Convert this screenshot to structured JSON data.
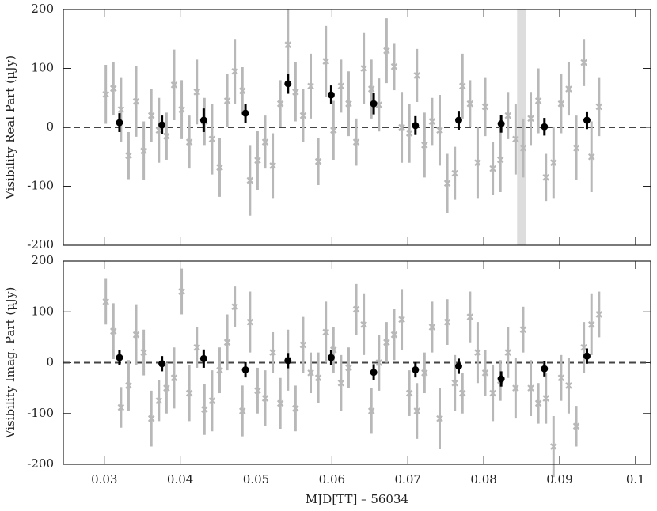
{
  "chart_data": [
    {
      "type": "scatter",
      "ylabel": "Visibility Real Part (μJy)",
      "xlim": [
        0.0246,
        0.102
      ],
      "ylim": [
        -200,
        200
      ],
      "xticks": [
        0.03,
        0.04,
        0.05,
        0.06,
        0.07,
        0.08,
        0.09,
        0.1
      ],
      "yticks": [
        -200,
        -100,
        0,
        100,
        200
      ],
      "zero_line": 0,
      "band": [
        0.0844,
        0.0856
      ],
      "band_color": "#dddddd",
      "series": [
        {
          "color": "#b8b8b8",
          "marker": "cross",
          "x": [
            0.0302,
            0.0312,
            0.0322,
            0.0332,
            0.0342,
            0.0352,
            0.0362,
            0.0372,
            0.0382,
            0.0392,
            0.0402,
            0.0412,
            0.0422,
            0.0432,
            0.0442,
            0.0452,
            0.0462,
            0.0472,
            0.0482,
            0.0492,
            0.0502,
            0.0512,
            0.0522,
            0.0532,
            0.0542,
            0.0552,
            0.0562,
            0.0572,
            0.0582,
            0.0592,
            0.0602,
            0.0612,
            0.0622,
            0.0632,
            0.0642,
            0.0652,
            0.0662,
            0.0672,
            0.0682,
            0.0692,
            0.0702,
            0.0712,
            0.0722,
            0.0732,
            0.0742,
            0.0752,
            0.0762,
            0.0772,
            0.0782,
            0.0792,
            0.0802,
            0.0812,
            0.0822,
            0.0832,
            0.0842,
            0.0852,
            0.0862,
            0.0872,
            0.0882,
            0.0892,
            0.0902,
            0.0912,
            0.0922,
            0.0932,
            0.0942,
            0.0952
          ],
          "values": [
            56,
            66,
            30,
            -48,
            44,
            -40,
            20,
            -5,
            -15,
            72,
            30,
            -25,
            60,
            10,
            -20,
            -68,
            45,
            95,
            62,
            -90,
            -56,
            -25,
            -65,
            40,
            140,
            60,
            20,
            70,
            -58,
            112,
            -5,
            70,
            40,
            -25,
            100,
            65,
            38,
            130,
            103,
            0,
            -10,
            88,
            -30,
            10,
            -5,
            -95,
            -78,
            70,
            40,
            -60,
            35,
            -70,
            -55,
            20,
            -20,
            -35,
            15,
            45,
            -85,
            -60,
            40,
            65,
            -35,
            110,
            -50,
            35
          ],
          "errors": [
            50,
            45,
            55,
            40,
            60,
            50,
            45,
            55,
            40,
            60,
            50,
            45,
            55,
            40,
            60,
            50,
            45,
            55,
            40,
            60,
            50,
            45,
            55,
            40,
            60,
            50,
            45,
            55,
            40,
            60,
            50,
            45,
            55,
            40,
            60,
            50,
            45,
            55,
            40,
            60,
            50,
            45,
            55,
            40,
            60,
            50,
            45,
            55,
            40,
            60,
            50,
            45,
            55,
            40,
            60,
            50,
            45,
            55,
            40,
            60,
            50,
            45,
            55,
            40,
            60,
            50
          ]
        },
        {
          "color": "#000000",
          "marker": "circle",
          "x": [
            0.032,
            0.0376,
            0.0431,
            0.0486,
            0.0542,
            0.0599,
            0.0655,
            0.071,
            0.0767,
            0.0823,
            0.088,
            0.0936
          ],
          "values": [
            8,
            4,
            12,
            24,
            74,
            55,
            40,
            3,
            12,
            6,
            1,
            12
          ],
          "errors": [
            16,
            16,
            20,
            16,
            17,
            16,
            18,
            16,
            16,
            15,
            15,
            15
          ]
        }
      ]
    },
    {
      "type": "scatter",
      "ylabel": "Visibility Imag. Part (μJy)",
      "xlabel": "MJD[TT] – 56034",
      "xlim": [
        0.0246,
        0.102
      ],
      "ylim": [
        -200,
        200
      ],
      "xticks": [
        0.03,
        0.04,
        0.05,
        0.06,
        0.07,
        0.08,
        0.09,
        0.1
      ],
      "yticks": [
        -200,
        -100,
        0,
        100,
        200
      ],
      "zero_line": 0,
      "series": [
        {
          "color": "#b8b8b8",
          "marker": "cross",
          "x": [
            0.0302,
            0.0312,
            0.0322,
            0.0332,
            0.0342,
            0.0352,
            0.0362,
            0.0372,
            0.0382,
            0.0392,
            0.0402,
            0.0412,
            0.0422,
            0.0432,
            0.0442,
            0.0452,
            0.0462,
            0.0472,
            0.0482,
            0.0492,
            0.0502,
            0.0512,
            0.0522,
            0.0532,
            0.0542,
            0.0552,
            0.0562,
            0.0572,
            0.0582,
            0.0592,
            0.0602,
            0.0612,
            0.0622,
            0.0632,
            0.0642,
            0.0652,
            0.0662,
            0.0672,
            0.0682,
            0.0692,
            0.0702,
            0.0712,
            0.0722,
            0.0732,
            0.0742,
            0.0752,
            0.0762,
            0.0772,
            0.0782,
            0.0792,
            0.0802,
            0.0812,
            0.0822,
            0.0832,
            0.0842,
            0.0852,
            0.0862,
            0.0872,
            0.0882,
            0.0892,
            0.0902,
            0.0912,
            0.0922,
            0.0932,
            0.0942,
            0.0952
          ],
          "values": [
            120,
            62,
            -88,
            -45,
            55,
            20,
            -110,
            -75,
            -50,
            -30,
            140,
            -60,
            30,
            -92,
            -75,
            -15,
            40,
            110,
            -95,
            80,
            -55,
            -70,
            20,
            -80,
            5,
            -90,
            35,
            -20,
            -30,
            60,
            25,
            -40,
            -10,
            105,
            75,
            -95,
            0,
            40,
            55,
            85,
            -60,
            -95,
            -20,
            70,
            -110,
            80,
            -40,
            -60,
            90,
            20,
            -20,
            -60,
            -35,
            20,
            -50,
            65,
            -50,
            -80,
            -70,
            -165,
            -30,
            -45,
            -125,
            30,
            75,
            95
          ],
          "errors": [
            45,
            55,
            40,
            50,
            60,
            45,
            55,
            40,
            50,
            60,
            45,
            55,
            40,
            50,
            60,
            45,
            55,
            40,
            50,
            60,
            45,
            55,
            40,
            50,
            60,
            45,
            55,
            40,
            50,
            60,
            45,
            55,
            40,
            50,
            60,
            45,
            55,
            40,
            50,
            60,
            45,
            55,
            40,
            50,
            60,
            45,
            55,
            40,
            50,
            60,
            45,
            55,
            40,
            50,
            60,
            45,
            55,
            40,
            50,
            60,
            45,
            55,
            40,
            50,
            60,
            45
          ]
        },
        {
          "color": "#000000",
          "marker": "circle",
          "x": [
            0.032,
            0.0376,
            0.0431,
            0.0486,
            0.0542,
            0.0599,
            0.0655,
            0.071,
            0.0767,
            0.0823,
            0.088,
            0.0936
          ],
          "values": [
            10,
            -2,
            8,
            -14,
            4,
            10,
            -19,
            -14,
            -7,
            -32,
            -12,
            13
          ],
          "errors": [
            15,
            15,
            18,
            15,
            15,
            15,
            16,
            15,
            15,
            15,
            15,
            15
          ]
        }
      ]
    }
  ]
}
